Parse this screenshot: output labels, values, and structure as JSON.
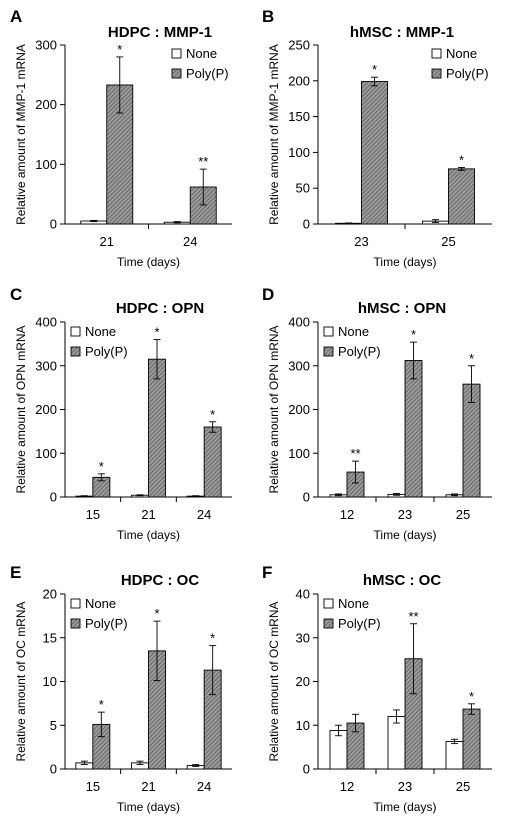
{
  "figure": {
    "colors": {
      "none_fill": "#ffffff",
      "poly_fill": "#9a9a9a",
      "hatch": "#4a4a4a",
      "stroke": "#000000"
    }
  },
  "chart_data": [
    {
      "panel": "A",
      "type": "bar",
      "title": "HDPC : MMP-1",
      "xlabel": "Time (days)",
      "ylabel": "Relative amount of MMP-1 mRNA",
      "ylim": [
        0,
        300
      ],
      "yticks": [
        0,
        100,
        200,
        300
      ],
      "categories": [
        "21",
        "24"
      ],
      "series": [
        {
          "name": "None",
          "values": [
            5,
            3
          ],
          "errors": [
            1,
            1
          ],
          "significance": [
            "",
            ""
          ]
        },
        {
          "name": "Poly(P)",
          "values": [
            233,
            62
          ],
          "errors": [
            47,
            30
          ],
          "significance": [
            "*",
            "**"
          ]
        }
      ],
      "legend": "top-right",
      "grid": false
    },
    {
      "panel": "B",
      "type": "bar",
      "title": "hMSC : MMP-1",
      "xlabel": "Time (days)",
      "ylabel": "Relative amount of MMP-1 mRNA",
      "ylim": [
        0,
        250
      ],
      "yticks": [
        0,
        50,
        100,
        150,
        200,
        250
      ],
      "categories": [
        "23",
        "25"
      ],
      "series": [
        {
          "name": "None",
          "values": [
            1,
            4
          ],
          "errors": [
            0.5,
            2
          ],
          "significance": [
            "",
            ""
          ]
        },
        {
          "name": "Poly(P)",
          "values": [
            199,
            77
          ],
          "errors": [
            6,
            2
          ],
          "significance": [
            "*",
            "*"
          ]
        }
      ],
      "legend": "top-right",
      "grid": false
    },
    {
      "panel": "C",
      "type": "bar",
      "title": "HDPC : OPN",
      "xlabel": "Time (days)",
      "ylabel": "Relative amount of OPN mRNA",
      "ylim": [
        0,
        400
      ],
      "yticks": [
        0,
        100,
        200,
        300,
        400
      ],
      "categories": [
        "15",
        "21",
        "24"
      ],
      "series": [
        {
          "name": "None",
          "values": [
            2,
            4,
            2
          ],
          "errors": [
            1,
            1,
            1
          ],
          "significance": [
            "",
            "",
            ""
          ]
        },
        {
          "name": "Poly(P)",
          "values": [
            45,
            315,
            160
          ],
          "errors": [
            8,
            45,
            12
          ],
          "significance": [
            "*",
            "*",
            "*"
          ]
        }
      ],
      "legend": "top-left",
      "grid": false
    },
    {
      "panel": "D",
      "type": "bar",
      "title": "hMSC : OPN",
      "xlabel": "Time (days)",
      "ylabel": "Relative amount of OPN mRNA",
      "ylim": [
        0,
        400
      ],
      "yticks": [
        0,
        100,
        200,
        300,
        400
      ],
      "categories": [
        "12",
        "23",
        "25"
      ],
      "series": [
        {
          "name": "None",
          "values": [
            5,
            6,
            5
          ],
          "errors": [
            2,
            2,
            2
          ],
          "significance": [
            "",
            "",
            ""
          ]
        },
        {
          "name": "Poly(P)",
          "values": [
            57,
            312,
            258
          ],
          "errors": [
            25,
            42,
            42
          ],
          "significance": [
            "**",
            "*",
            "*"
          ]
        }
      ],
      "legend": "top-left",
      "grid": false
    },
    {
      "panel": "E",
      "type": "bar",
      "title": "HDPC : OC",
      "xlabel": "Time (days)",
      "ylabel": "Relative amount of OC mRNA",
      "ylim": [
        0,
        20
      ],
      "yticks": [
        0,
        5,
        10,
        15,
        20
      ],
      "categories": [
        "15",
        "21",
        "24"
      ],
      "series": [
        {
          "name": "None",
          "values": [
            0.7,
            0.7,
            0.4
          ],
          "errors": [
            0.2,
            0.2,
            0.1
          ],
          "significance": [
            "",
            "",
            ""
          ]
        },
        {
          "name": "Poly(P)",
          "values": [
            5.1,
            13.5,
            11.3
          ],
          "errors": [
            1.4,
            3.4,
            2.8
          ],
          "significance": [
            "*",
            "*",
            "*"
          ]
        }
      ],
      "legend": "top-left",
      "grid": false
    },
    {
      "panel": "F",
      "type": "bar",
      "title": "hMSC : OC",
      "xlabel": "Time (days)",
      "ylabel": "Relative amount of OC mRNA",
      "ylim": [
        0,
        40
      ],
      "yticks": [
        0,
        10,
        20,
        30,
        40
      ],
      "categories": [
        "12",
        "23",
        "25"
      ],
      "series": [
        {
          "name": "None",
          "values": [
            8.8,
            12.0,
            6.3
          ],
          "errors": [
            1.2,
            1.5,
            0.5
          ],
          "significance": [
            "",
            "",
            ""
          ]
        },
        {
          "name": "Poly(P)",
          "values": [
            10.5,
            25.2,
            13.7
          ],
          "errors": [
            2.0,
            8.0,
            1.2
          ],
          "significance": [
            "",
            "**",
            "*"
          ]
        }
      ],
      "legend": "top-left",
      "grid": false
    }
  ]
}
